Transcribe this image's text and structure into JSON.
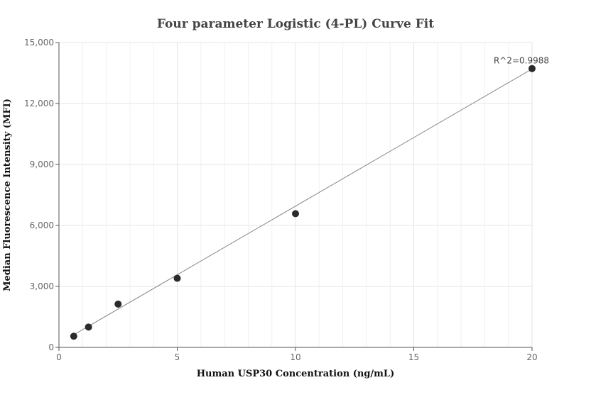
{
  "chart_data": {
    "type": "scatter",
    "title": "Four parameter Logistic (4-PL) Curve Fit",
    "xlabel": "Human USP30 Concentration (ng/mL)",
    "ylabel": "Median Fluorescence Intensity (MFI)",
    "xlim": [
      0,
      20
    ],
    "ylim": [
      0,
      15000
    ],
    "x_ticks": [
      0,
      5,
      10,
      15,
      20
    ],
    "x_tick_labels": [
      "0",
      "5",
      "10",
      "15",
      "20"
    ],
    "y_ticks": [
      0,
      3000,
      6000,
      9000,
      12000,
      15000
    ],
    "y_tick_labels": [
      "0",
      "3,000",
      "6,000",
      "9,000",
      "12,000",
      "15,000"
    ],
    "grid": true,
    "series": [
      {
        "type": "scatter",
        "x": [
          0.625,
          1.25,
          2.5,
          5,
          10,
          20
        ],
        "y": [
          550,
          1000,
          2130,
          3400,
          6580,
          13720
        ],
        "color": "#2b2b2b"
      },
      {
        "type": "line",
        "x": [
          0.625,
          20
        ],
        "y": [
          620,
          13700
        ],
        "color": "#888888"
      }
    ],
    "annotations": [
      {
        "text": "R^2=0.9988",
        "x": 20,
        "y": 13720
      }
    ]
  }
}
